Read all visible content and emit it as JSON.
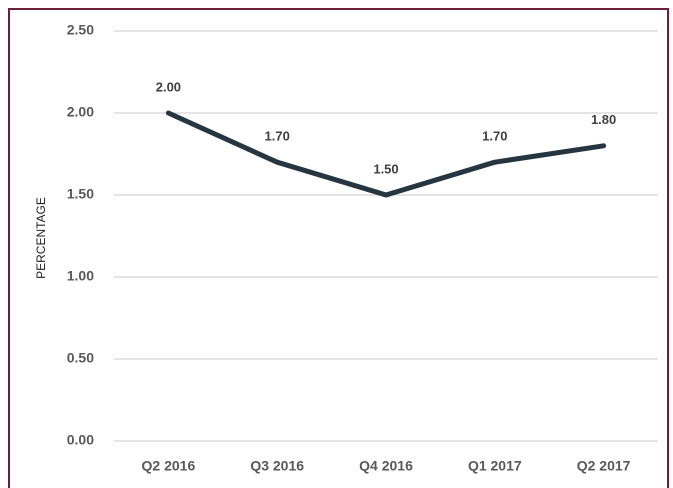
{
  "chart_data": {
    "type": "line",
    "y_label": "PERCENTAGE",
    "categories": [
      "Q2 2016",
      "Q3 2016",
      "Q4 2016",
      "Q1 2017",
      "Q2 2017"
    ],
    "values": [
      2.0,
      1.7,
      1.5,
      1.7,
      1.8
    ],
    "value_labels": [
      "2.00",
      "1.70",
      "1.50",
      "1.70",
      "1.80"
    ],
    "color": "#263640",
    "ylim": [
      0,
      2.5
    ],
    "yticks": [
      {
        "value": 0,
        "label": "0.00"
      },
      {
        "value": 0.5,
        "label": "0.50"
      },
      {
        "value": 1,
        "label": "1.00"
      },
      {
        "value": 1.5,
        "label": "1.50"
      },
      {
        "value": 2,
        "label": "2.00"
      },
      {
        "value": 2.5,
        "label": "2.50"
      }
    ],
    "grid": true
  }
}
